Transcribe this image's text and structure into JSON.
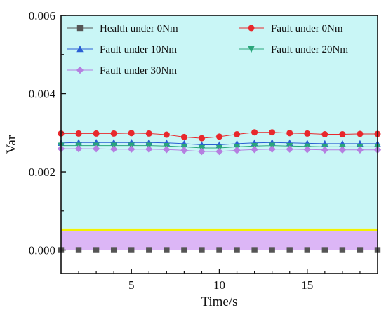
{
  "chart_data": {
    "type": "line",
    "xlabel": "Time/s",
    "ylabel": "Var",
    "xlim": [
      1,
      19
    ],
    "ylim": [
      -0.0006,
      0.006
    ],
    "xticks": [
      5,
      10,
      15
    ],
    "yticks": [
      0.0,
      0.002,
      0.004,
      0.006
    ],
    "ytick_labels": [
      "0.000",
      "0.002",
      "0.004",
      "0.006"
    ],
    "grid": false,
    "legend_position": "top",
    "x": [
      1,
      2,
      3,
      4,
      5,
      6,
      7,
      8,
      9,
      10,
      11,
      12,
      13,
      14,
      15,
      16,
      17,
      18,
      19
    ],
    "series": [
      {
        "name": "Health under 0Nm",
        "color": "#555555",
        "marker": "square",
        "values": [
          0.0,
          0.0,
          0.0,
          0.0,
          0.0,
          0.0,
          0.0,
          0.0,
          0.0,
          0.0,
          0.0,
          0.0,
          0.0,
          0.0,
          0.0,
          0.0,
          0.0,
          0.0,
          0.0
        ]
      },
      {
        "name": "Fault under 0Nm",
        "color": "#e8282c",
        "marker": "circle",
        "values": [
          0.00298,
          0.00298,
          0.00298,
          0.00298,
          0.00299,
          0.00298,
          0.00295,
          0.00289,
          0.00286,
          0.0029,
          0.00296,
          0.00301,
          0.00301,
          0.00299,
          0.00298,
          0.00296,
          0.00296,
          0.00297,
          0.00297
        ]
      },
      {
        "name": "Fault under 10Nm",
        "color": "#2a5fd4",
        "marker": "triangle-up",
        "values": [
          0.00274,
          0.00275,
          0.00275,
          0.00275,
          0.00275,
          0.00275,
          0.00274,
          0.00272,
          0.00269,
          0.00269,
          0.00272,
          0.00274,
          0.00275,
          0.00274,
          0.00273,
          0.00272,
          0.00272,
          0.00272,
          0.00272
        ]
      },
      {
        "name": "Fault under 20Nm",
        "color": "#2aa67a",
        "marker": "triangle-down",
        "values": [
          0.00267,
          0.00267,
          0.00267,
          0.00267,
          0.00267,
          0.00267,
          0.00266,
          0.00264,
          0.00261,
          0.00261,
          0.00264,
          0.00266,
          0.00267,
          0.00266,
          0.00265,
          0.00264,
          0.00264,
          0.00264,
          0.00264
        ]
      },
      {
        "name": "Fault under 30Nm",
        "color": "#b57fe0",
        "marker": "diamond",
        "values": [
          0.00259,
          0.00259,
          0.00259,
          0.00258,
          0.00258,
          0.00258,
          0.00257,
          0.00255,
          0.00252,
          0.00252,
          0.00255,
          0.00257,
          0.00258,
          0.00258,
          0.00257,
          0.00256,
          0.00256,
          0.00256,
          0.00256
        ]
      }
    ],
    "bands": [
      {
        "name": "background-band",
        "from": 0.00055,
        "to": 0.006,
        "color": "#c9f6f6"
      },
      {
        "name": "separator-band",
        "from": 0.00048,
        "to": 0.00055,
        "color": "#f2f200"
      },
      {
        "name": "lower-band",
        "from": 0.0,
        "to": 0.00048,
        "color": "#dcb6f6"
      }
    ]
  }
}
